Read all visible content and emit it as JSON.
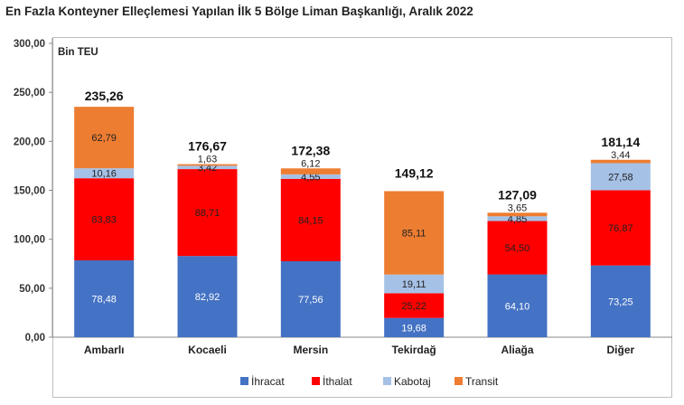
{
  "title": "En Fazla Konteyner Elleçlemesi Yapılan İlk 5 Bölge Liman Başkanlığı, Aralık 2022",
  "chart_data": {
    "type": "bar",
    "stacked": true,
    "title": "En Fazla Konteyner Elleçlemesi Yapılan İlk 5 Bölge Liman Başkanlığı, Aralık 2022",
    "unit_label": "Bin TEU",
    "categories": [
      "Ambarlı",
      "Kocaeli",
      "Mersin",
      "Tekirdağ",
      "Aliağa",
      "Diğer"
    ],
    "series": [
      {
        "name": "İhracat",
        "color": "#4472c4",
        "values": [
          78.48,
          82.92,
          77.56,
          19.68,
          64.1,
          73.25
        ],
        "labels": [
          "78,48",
          "82,92",
          "77,56",
          "19,68",
          "64,10",
          "73,25"
        ]
      },
      {
        "name": "İthalat",
        "color": "#ff0000",
        "values": [
          83.83,
          88.71,
          84.15,
          25.22,
          54.5,
          76.87
        ],
        "labels": [
          "83,83",
          "88,71",
          "84,15",
          "25,22",
          "54,50",
          "76,87"
        ]
      },
      {
        "name": "Kabotaj",
        "color": "#a6c1e6",
        "values": [
          10.16,
          3.42,
          4.55,
          19.11,
          4.85,
          27.58
        ],
        "labels": [
          "10,16",
          "3,42",
          "4,55",
          "19,11",
          "4,85",
          "27,58"
        ]
      },
      {
        "name": "Transit",
        "color": "#ed7d31",
        "values": [
          62.79,
          1.63,
          6.12,
          85.11,
          3.65,
          3.44
        ],
        "labels": [
          "62,79",
          "1,63",
          "6,12",
          "85,11",
          "3,65",
          "3,44"
        ]
      }
    ],
    "totals": [
      "235,26",
      "176,67",
      "172,38",
      "149,12",
      "127,09",
      "181,14"
    ],
    "total_values": [
      235.26,
      176.67,
      172.38,
      149.12,
      127.09,
      181.14
    ],
    "ylim": [
      0,
      300
    ],
    "yticks": [
      0,
      50,
      100,
      150,
      200,
      250,
      300
    ],
    "ytick_labels": [
      "0,00",
      "50,00",
      "100,00",
      "150,00",
      "200,00",
      "250,00",
      "300,00"
    ],
    "grid": false,
    "legend_position": "bottom"
  }
}
